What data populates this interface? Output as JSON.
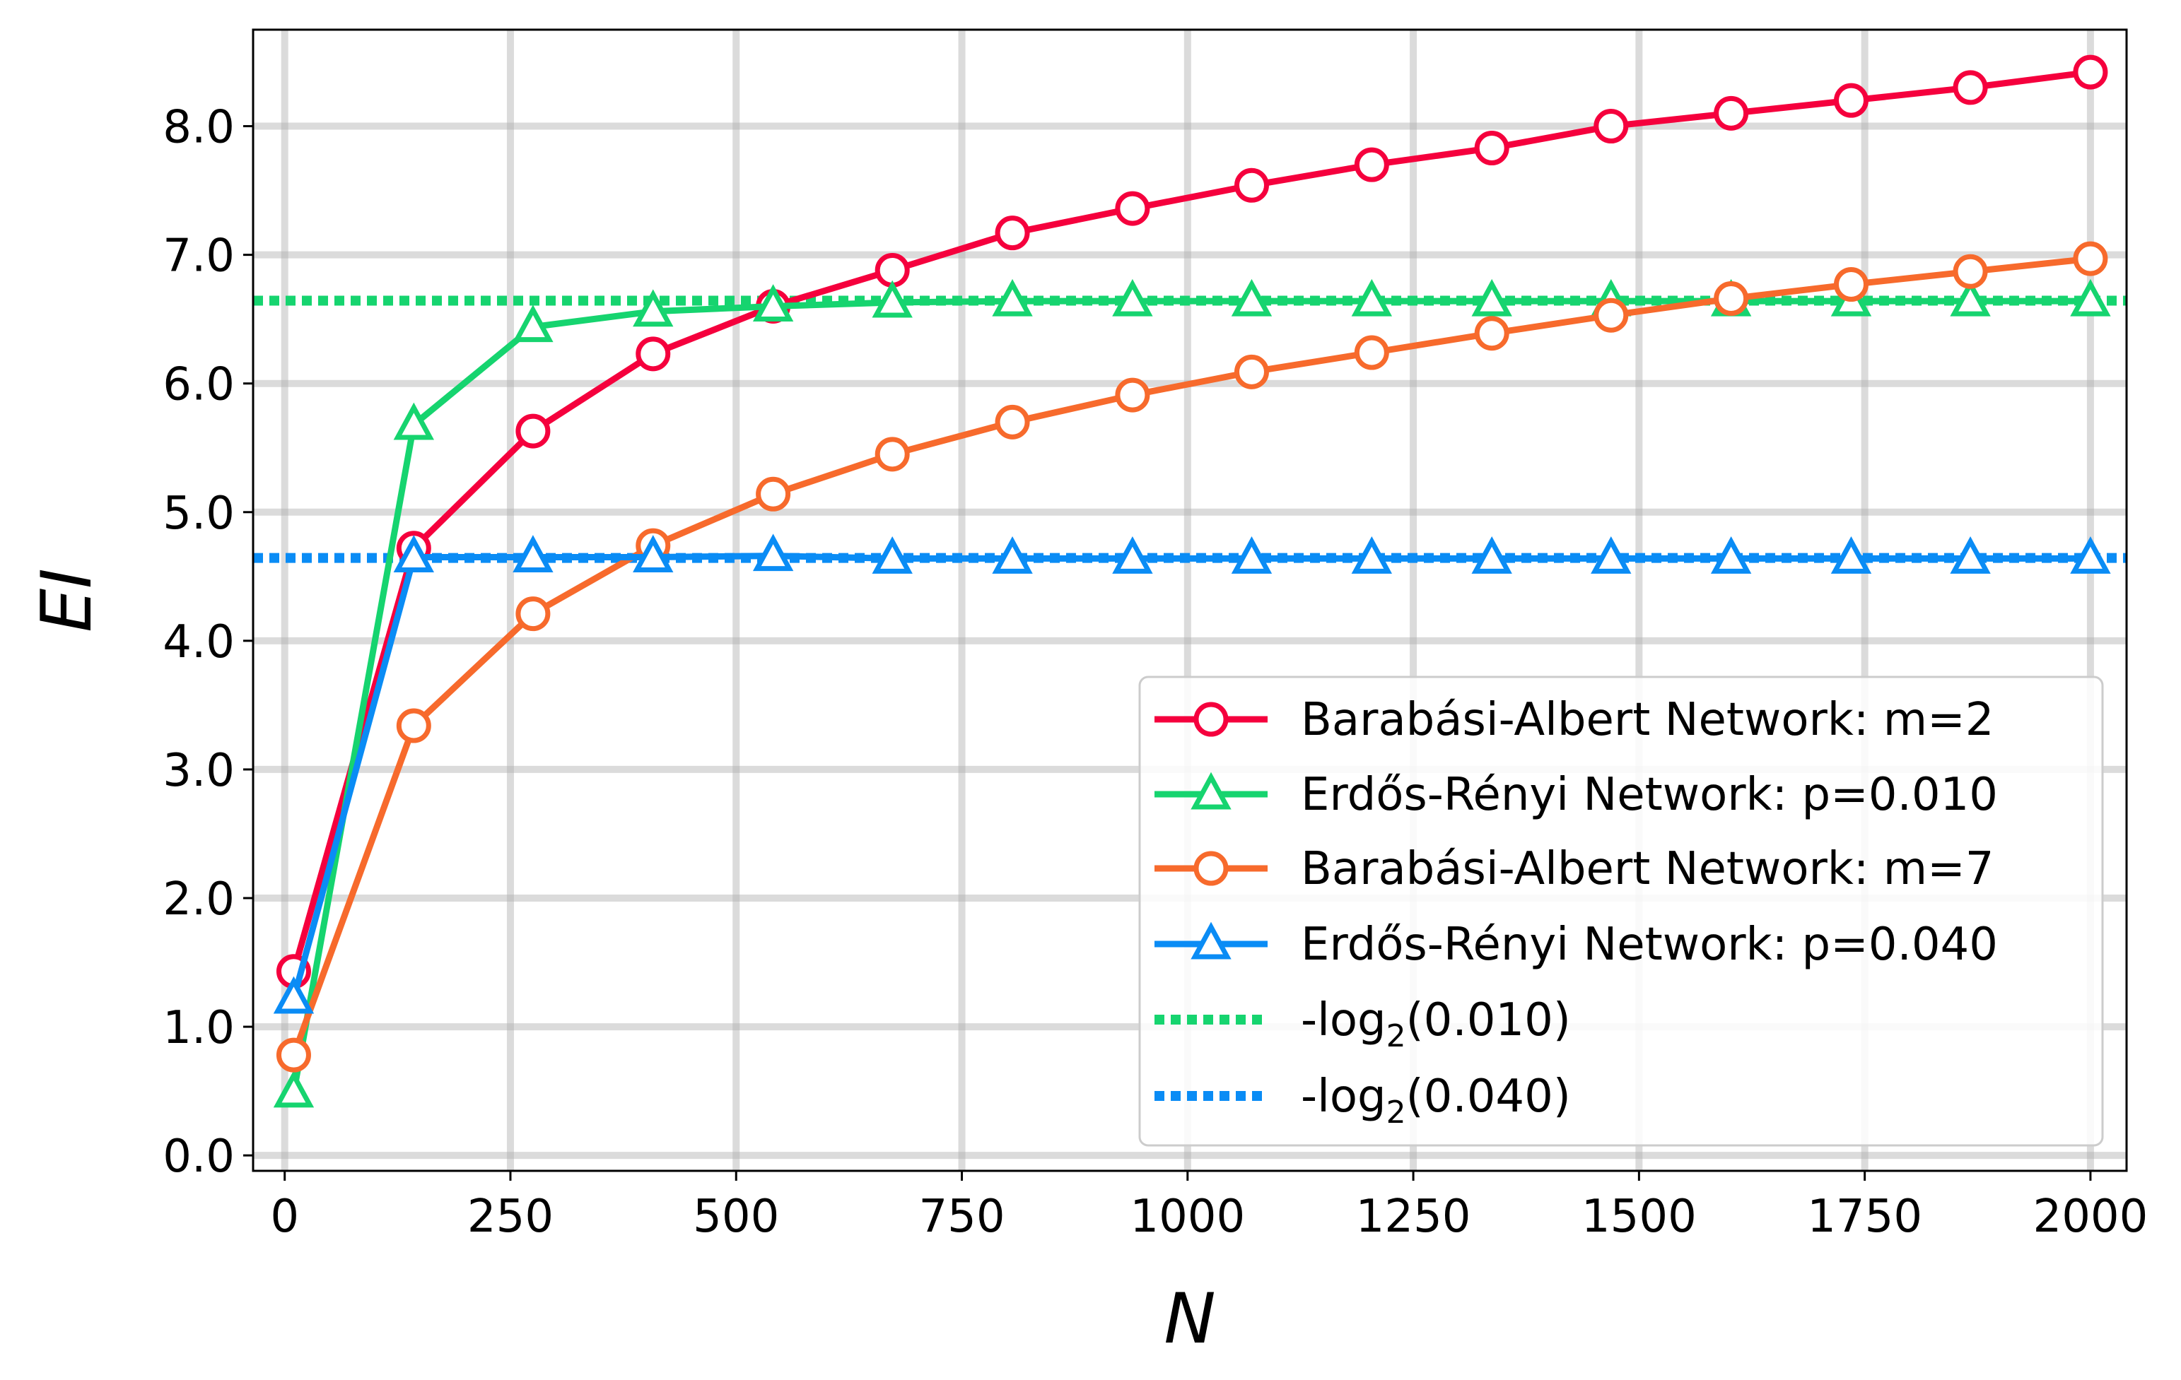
{
  "chart_data": {
    "type": "line",
    "title": "",
    "xlabel": "N",
    "ylabel": "EI",
    "xlim": [
      -35,
      2040
    ],
    "ylim": [
      -0.12,
      8.75
    ],
    "grid": true,
    "legend_position": "lower-right",
    "x_ticks": [
      0,
      250,
      500,
      750,
      1000,
      1250,
      1500,
      1750,
      2000
    ],
    "x_tick_labels": [
      "0",
      "250",
      "500",
      "750",
      "1000",
      "1250",
      "1500",
      "1750",
      "2000"
    ],
    "y_ticks": [
      0,
      1,
      2,
      3,
      4,
      5,
      6,
      7,
      8
    ],
    "y_tick_labels": [
      "0.0",
      "1.0",
      "2.0",
      "3.0",
      "4.0",
      "5.0",
      "6.0",
      "7.0",
      "8.0"
    ],
    "x": [
      10,
      143,
      275,
      408,
      541,
      673,
      806,
      939,
      1071,
      1204,
      1337,
      1469,
      1602,
      1735,
      1867,
      2000
    ],
    "series": [
      {
        "name": "Barabási-Albert Network: m=2",
        "color": "#f5003d",
        "marker": "circle",
        "values": [
          1.43,
          4.72,
          5.63,
          6.23,
          6.6,
          6.88,
          7.17,
          7.36,
          7.54,
          7.7,
          7.83,
          8.0,
          8.1,
          8.2,
          8.3,
          8.42
        ]
      },
      {
        "name": "Erdős-Rényi Network: p=0.010",
        "color": "#16d46f",
        "marker": "triangle",
        "values": [
          0.49,
          5.68,
          6.44,
          6.56,
          6.6,
          6.63,
          6.64,
          6.64,
          6.64,
          6.64,
          6.64,
          6.64,
          6.64,
          6.64,
          6.64,
          6.64
        ]
      },
      {
        "name": "Barabási-Albert Network: m=7",
        "color": "#f76a2c",
        "marker": "circle",
        "values": [
          0.78,
          3.34,
          4.21,
          4.74,
          5.14,
          5.45,
          5.7,
          5.91,
          6.09,
          6.24,
          6.39,
          6.53,
          6.66,
          6.77,
          6.87,
          6.97
        ]
      },
      {
        "name": "Erdős-Rényi Network: p=0.040",
        "color": "#0a8cf5",
        "marker": "triangle",
        "values": [
          1.22,
          4.65,
          4.65,
          4.65,
          4.66,
          4.64,
          4.64,
          4.64,
          4.64,
          4.64,
          4.64,
          4.64,
          4.64,
          4.64,
          4.64,
          4.64
        ]
      }
    ],
    "reference_lines": [
      {
        "label": "-log",
        "subscript": "2",
        "suffix": "(0.010)",
        "value": 6.644,
        "color": "#16d46f",
        "style": "dotted"
      },
      {
        "label": "-log",
        "subscript": "2",
        "suffix": "(0.040)",
        "value": 4.644,
        "color": "#0a8cf5",
        "style": "dotted"
      }
    ]
  }
}
